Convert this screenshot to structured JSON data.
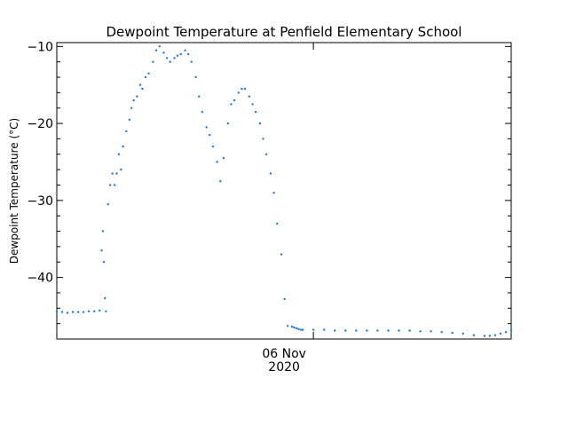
{
  "chart_data": {
    "type": "scatter",
    "title": "Dewpoint Temperature at Penfield Elementary School",
    "xlabel": "",
    "ylabel": "Dewpoint Temperature (°C)",
    "x_unit": "hours",
    "xlim": [
      0,
      42.5
    ],
    "ylim": [
      -48,
      -9.5
    ],
    "y_ticks": [
      -10,
      -20,
      -30,
      -40
    ],
    "y_tick_labels": [
      "−10",
      "−20",
      "−30",
      "−40"
    ],
    "x_ticks": [
      24
    ],
    "x_tick_labels": [
      [
        "06 Nov",
        "2020"
      ]
    ],
    "grid": false,
    "color": "#1f77d4",
    "x": [
      0,
      0.5,
      1,
      1.5,
      2,
      2.5,
      3,
      3.5,
      4,
      4.2,
      4.3,
      4.4,
      4.5,
      4.6,
      4.8,
      5.0,
      5.2,
      5.4,
      5.6,
      5.8,
      6.0,
      6.2,
      6.5,
      6.8,
      7.0,
      7.2,
      7.5,
      7.8,
      8.0,
      8.3,
      8.6,
      9.0,
      9.3,
      9.6,
      10.0,
      10.3,
      10.6,
      11.0,
      11.3,
      11.6,
      12.0,
      12.3,
      12.6,
      13.0,
      13.3,
      13.6,
      14.0,
      14.3,
      14.6,
      15.0,
      15.3,
      15.6,
      16.0,
      16.3,
      16.6,
      17.0,
      17.3,
      17.6,
      18.0,
      18.3,
      18.6,
      19.0,
      19.3,
      19.6,
      20.0,
      20.3,
      20.6,
      21.0,
      21.3,
      21.6,
      22.0,
      22.2,
      22.4,
      22.6,
      22.8,
      23.0,
      24,
      25,
      26,
      27,
      28,
      29,
      30,
      31,
      32,
      33,
      34,
      35,
      36,
      37,
      38,
      39,
      40,
      40.5,
      41,
      41.5,
      42,
      42.5
    ],
    "y": [
      -44.5,
      -44.5,
      -44.6,
      -44.5,
      -44.5,
      -44.5,
      -44.4,
      -44.4,
      -44.3,
      -36.5,
      -34.0,
      -38.0,
      -42.7,
      -44.4,
      -30.5,
      -28.0,
      -26.5,
      -28.0,
      -26.5,
      -24.0,
      -26.0,
      -23.0,
      -21.0,
      -19.5,
      -18.0,
      -17.0,
      -16.5,
      -15.0,
      -15.5,
      -14.0,
      -13.5,
      -12.0,
      -10.5,
      -10.0,
      -10.8,
      -11.5,
      -12.0,
      -11.5,
      -11.2,
      -11.0,
      -10.5,
      -11.0,
      -12.0,
      -14.0,
      -16.5,
      -18.5,
      -20.5,
      -21.5,
      -23.0,
      -25.0,
      -27.5,
      -24.5,
      -20.0,
      -17.5,
      -17.0,
      -16.0,
      -15.5,
      -15.5,
      -16.5,
      -17.5,
      -18.5,
      -20.0,
      -22.0,
      -24.0,
      -26.5,
      -29.0,
      -33.0,
      -37.0,
      -42.8,
      -46.3,
      -46.4,
      -46.5,
      -46.6,
      -46.7,
      -46.8,
      -46.8,
      -46.8,
      -46.8,
      -46.9,
      -46.9,
      -46.9,
      -46.9,
      -46.9,
      -46.9,
      -46.9,
      -46.9,
      -47.0,
      -47.0,
      -47.1,
      -47.2,
      -47.3,
      -47.5,
      -47.6,
      -47.6,
      -47.5,
      -47.3,
      -47.1,
      -46.9
    ]
  }
}
